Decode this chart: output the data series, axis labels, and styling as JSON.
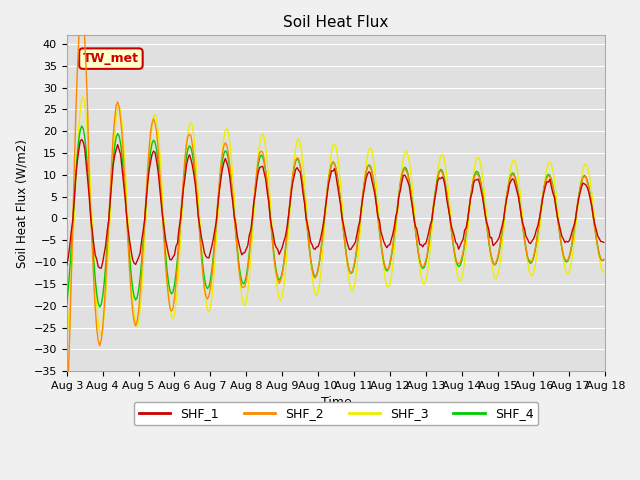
{
  "title": "Soil Heat Flux",
  "xlabel": "Time",
  "ylabel": "Soil Heat Flux (W/m2)",
  "ylim": [
    -35,
    42
  ],
  "yticks": [
    -35,
    -30,
    -25,
    -20,
    -15,
    -10,
    -5,
    0,
    5,
    10,
    15,
    20,
    25,
    30,
    35,
    40
  ],
  "colors": {
    "SHF_1": "#cc0000",
    "SHF_2": "#ff8800",
    "SHF_3": "#eeee00",
    "SHF_4": "#00cc00"
  },
  "fig_bg": "#f0f0f0",
  "plot_bg": "#e0e0e0",
  "legend_label": "TW_met",
  "legend_bg": "#ffffcc",
  "legend_border": "#cc0000",
  "x_start_day": 3,
  "x_end_day": 18,
  "x_tick_days": [
    3,
    4,
    5,
    6,
    7,
    8,
    9,
    10,
    11,
    12,
    13,
    14,
    15,
    16,
    17,
    18
  ],
  "x_tick_labels": [
    "Aug 3",
    "Aug 4",
    "Aug 5",
    "Aug 6",
    "Aug 7",
    "Aug 8",
    "Aug 9",
    "Aug 10",
    "Aug 11",
    "Aug 12",
    "Aug 13",
    "Aug 14",
    "Aug 15",
    "Aug 16",
    "Aug 17",
    "Aug 18"
  ]
}
